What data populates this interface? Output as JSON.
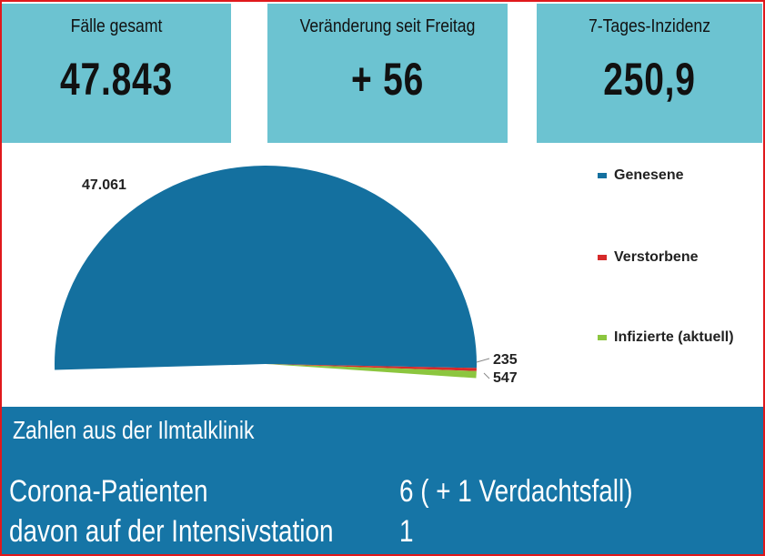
{
  "stats": [
    {
      "title": "Fälle gesamt",
      "value": "47.843"
    },
    {
      "title": "Veränderung seit Freitag",
      "value": "+ 56"
    },
    {
      "title": "7-Tages-Inzidenz",
      "value": "250,9"
    }
  ],
  "colors": {
    "frame": "#e0191c",
    "card": "#6cc3d1",
    "genesene": "#14709f",
    "verstorbene": "#d62a2a",
    "infizierte": "#8cc63f",
    "band": "#1675a6"
  },
  "chart_data": {
    "type": "pie",
    "values": [
      47061,
      235,
      547
    ],
    "categories": [
      "Genesene",
      "Verstorbene",
      "Infizierte (aktuell)"
    ],
    "data_labels": [
      "47.061",
      "235",
      "547"
    ],
    "legend_position": "right"
  },
  "klinik": {
    "title": "Zahlen aus der Ilmtalklinik",
    "rows": [
      {
        "label": "Corona-Patienten",
        "value": "6 ( + 1 Verdachtsfall)"
      },
      {
        "label": "davon auf der Intensivstation",
        "value": "1"
      }
    ]
  }
}
